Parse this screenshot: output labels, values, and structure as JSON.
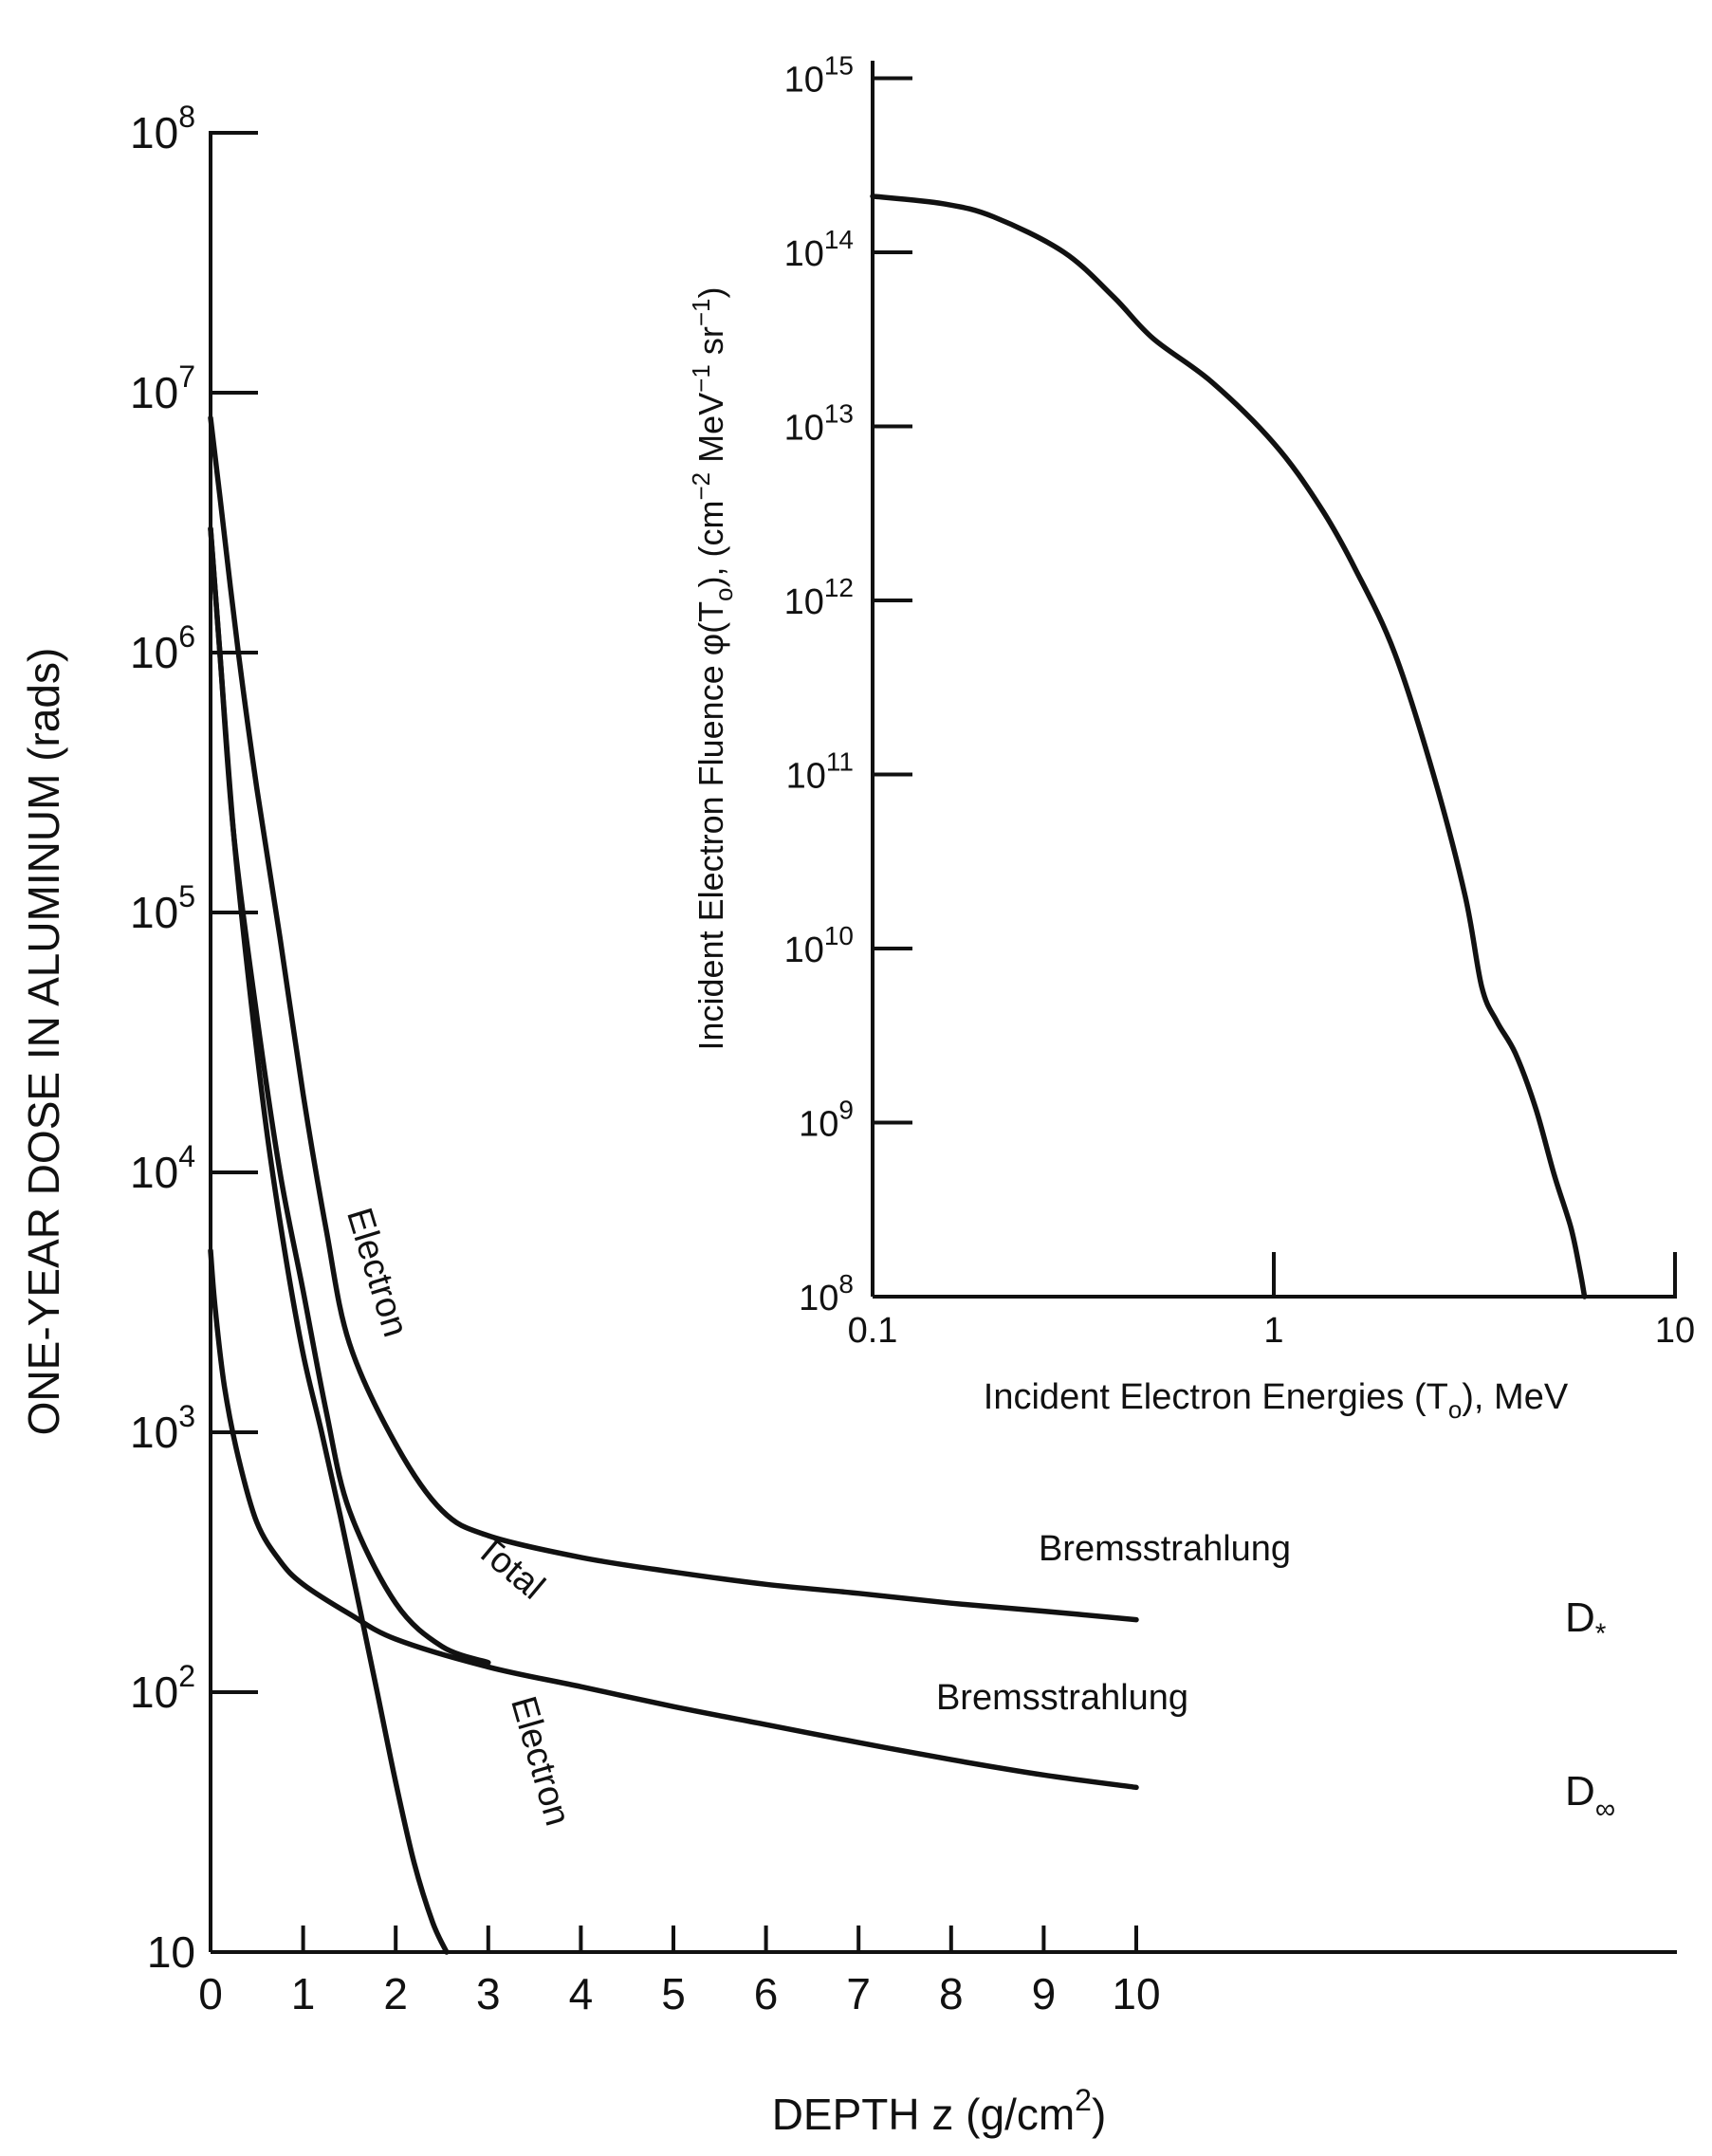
{
  "main_chart": {
    "ylabel": "ONE-YEAR DOSE IN ALUMINUM (rads)",
    "xlabel_prefix": "DEPTH z (g/cm",
    "xlabel_sup": "2",
    "xlabel_suffix": ")",
    "x_ticks": [
      "0",
      "1",
      "2",
      "3",
      "4",
      "5",
      "6",
      "7",
      "8",
      "9",
      "10"
    ],
    "y_ticks": [
      {
        "base": "10",
        "exp": ""
      },
      {
        "base": "10",
        "exp": "2"
      },
      {
        "base": "10",
        "exp": "3"
      },
      {
        "base": "10",
        "exp": "4"
      },
      {
        "base": "10",
        "exp": "5"
      },
      {
        "base": "10",
        "exp": "6"
      },
      {
        "base": "10",
        "exp": "7"
      },
      {
        "base": "10",
        "exp": "8"
      }
    ],
    "curve_labels": {
      "electron_upper": "Electron",
      "electron_lower": "Electron",
      "total": "Total",
      "brems_upper": "Bremsstrahlung",
      "brems_lower": "Bremsstrahlung",
      "d_star": "D",
      "d_star_mark": "*",
      "d_inf": "D",
      "d_inf_sub": "∞"
    }
  },
  "inset_chart": {
    "ylabel_prefix": "Incident Electron Fluence  φ(T",
    "ylabel_sub": "o",
    "ylabel_mid": "),  (cm",
    "ylabel_sup1": "−2",
    "ylabel_mid2": " MeV",
    "ylabel_sup2": "−1",
    "ylabel_mid3": " sr",
    "ylabel_sup3": "−1",
    "ylabel_suffix": ")",
    "xlabel_prefix": "Incident Electron Energies (T",
    "xlabel_sub": "o",
    "xlabel_suffix": "), MeV",
    "x_ticks": [
      "0.1",
      "1",
      "10"
    ],
    "y_ticks": [
      {
        "base": "10",
        "exp": "8"
      },
      {
        "base": "10",
        "exp": "9"
      },
      {
        "base": "10",
        "exp": "10"
      },
      {
        "base": "10",
        "exp": "11"
      },
      {
        "base": "10",
        "exp": "12"
      },
      {
        "base": "10",
        "exp": "13"
      },
      {
        "base": "10",
        "exp": "14"
      },
      {
        "base": "10",
        "exp": "15"
      }
    ]
  },
  "chart_data": [
    {
      "type": "line",
      "title": "",
      "xlabel": "DEPTH z (g/cm2)",
      "ylabel": "ONE-YEAR DOSE IN ALUMINUM (rads)",
      "xlim": [
        0,
        11
      ],
      "ylim": [
        10,
        100000000
      ],
      "y_scale": "log",
      "grid": false,
      "series": [
        {
          "name": "D*",
          "x": [
            0,
            0.1,
            0.3,
            0.5,
            0.75,
            1.0,
            1.25,
            1.5,
            2.0,
            2.5,
            3.0,
            4.0,
            5.0,
            6.0,
            7.0,
            8.0,
            9.0,
            10.0
          ],
          "y": [
            8000000,
            4000000,
            1000000,
            300000,
            80000,
            20000,
            6000,
            2200,
            900,
            500,
            400,
            330,
            290,
            260,
            240,
            220,
            205,
            190
          ]
        },
        {
          "name": "Electron (D*)",
          "x": [
            0,
            0.1,
            0.25,
            0.4,
            0.6,
            0.8,
            1.0,
            1.2,
            1.4,
            1.6,
            1.8,
            2.0,
            2.2,
            2.4,
            2.55
          ],
          "y": [
            3000000,
            1000000,
            200000,
            60000,
            15000,
            5000,
            2000,
            1000,
            480,
            220,
            100,
            45,
            22,
            13,
            10
          ]
        },
        {
          "name": "Total (D∞)",
          "x": [
            0,
            0.1,
            0.25,
            0.5,
            0.75,
            1.0,
            1.25,
            1.5,
            2.0,
            2.5,
            3.0
          ],
          "y": [
            3000000,
            1000000,
            200000,
            40000,
            10000,
            3500,
            1200,
            500,
            220,
            150,
            130
          ]
        },
        {
          "name": "D∞",
          "x": [
            0,
            0.05,
            0.15,
            0.3,
            0.5,
            0.75,
            1.0,
            1.5,
            2.0,
            3.0,
            4.0,
            5.0,
            6.0,
            7.0,
            8.0,
            9.0,
            10.0
          ],
          "y": [
            5000,
            3000,
            1500,
            800,
            450,
            320,
            260,
            200,
            160,
            125,
            105,
            88,
            75,
            64,
            55,
            48,
            43
          ]
        }
      ],
      "annotations": [
        "Electron",
        "Electron",
        "Total",
        "Bremsstrahlung",
        "Bremsstrahlung",
        "D*",
        "D∞"
      ]
    },
    {
      "type": "line",
      "title": "",
      "xlabel": "Incident Electron Energies (To), MeV",
      "ylabel": "Incident Electron Fluence φ(To), (cm−2 MeV−1 sr−1)",
      "xlim": [
        0.1,
        10
      ],
      "ylim": [
        100000000,
        1000000000000000
      ],
      "x_scale": "log",
      "y_scale": "log",
      "grid": false,
      "series": [
        {
          "name": "",
          "x": [
            0.1,
            0.15,
            0.2,
            0.3,
            0.4,
            0.5,
            0.7,
            1.0,
            1.3,
            1.6,
            2.0,
            2.5,
            3.0,
            3.3,
            3.6,
            4.0,
            4.5,
            5.0,
            5.5,
            5.8,
            5.95
          ],
          "y": [
            210000000000000.0,
            190000000000000.0,
            160000000000000.0,
            100000000000000.0,
            55000000000000.0,
            32000000000000.0,
            18000000000000.0,
            8000000000000.0,
            3500000000000.0,
            1500000000000.0,
            500000000000.0,
            100000000000.0,
            20000000000.0,
            6000000000.0,
            3800000000.0,
            2500000000.0,
            1200000000.0,
            500000000.0,
            250000000.0,
            140000000.0,
            100000000.0
          ]
        }
      ]
    }
  ]
}
